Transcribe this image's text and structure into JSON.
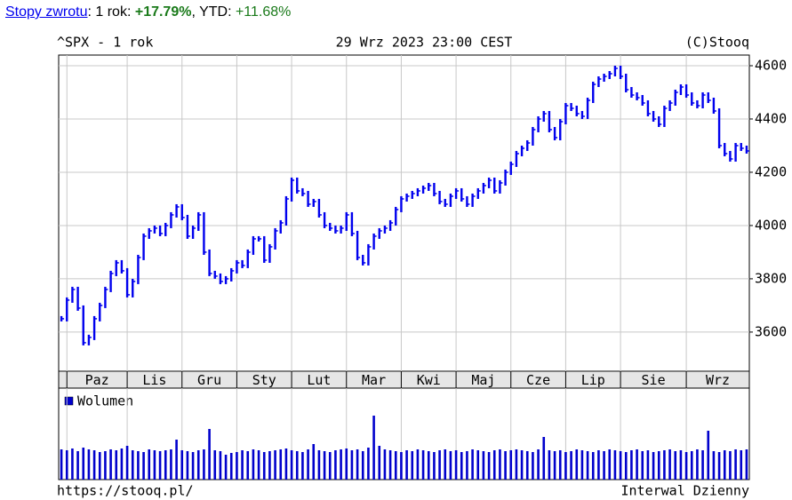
{
  "header": {
    "link": "Stopy zwrotu",
    "period": "1 rok",
    "return": "+17.79%",
    "ytd_label": "YTD",
    "ytd": "+11.68%"
  },
  "chart_data": {
    "type": "stock",
    "title": "^SPX - 1 rok",
    "subtitle": "29 Wrz 2023 23:00 CEST",
    "source": "(C)Stooq",
    "categories": [
      null,
      "Paz",
      null,
      null,
      null,
      null,
      null,
      null,
      null,
      null,
      null,
      null,
      "Lis",
      null,
      null,
      null,
      null,
      null,
      null,
      null,
      null,
      null,
      "Gru",
      null,
      null,
      null,
      null,
      null,
      null,
      null,
      null,
      null,
      "Sty",
      null,
      null,
      null,
      null,
      null,
      null,
      null,
      null,
      null,
      "Lut",
      null,
      null,
      null,
      null,
      null,
      null,
      null,
      null,
      null,
      "Mar",
      null,
      null,
      null,
      null,
      null,
      null,
      null,
      null,
      null,
      "Kwi",
      null,
      null,
      null,
      null,
      null,
      null,
      null,
      null,
      null,
      "Maj",
      null,
      null,
      null,
      null,
      null,
      null,
      null,
      null,
      null,
      "Cze",
      null,
      null,
      null,
      null,
      null,
      null,
      null,
      null,
      null,
      "Lip",
      null,
      null,
      null,
      null,
      null,
      null,
      null,
      null,
      null,
      "Sie",
      null,
      null,
      null,
      null,
      null,
      null,
      null,
      null,
      null,
      null,
      null,
      "Wrz",
      null,
      null,
      null,
      null,
      null,
      null,
      null,
      null,
      null,
      null,
      null
    ],
    "values": [
      3650,
      3720,
      3760,
      3690,
      3560,
      3580,
      3650,
      3700,
      3760,
      3820,
      3860,
      3830,
      3740,
      3790,
      3880,
      3960,
      3980,
      3990,
      3970,
      4000,
      4040,
      4070,
      4030,
      3960,
      3990,
      4040,
      3900,
      3820,
      3810,
      3790,
      3800,
      3830,
      3860,
      3850,
      3900,
      3950,
      3950,
      3870,
      3920,
      3980,
      4010,
      4100,
      4170,
      4130,
      4120,
      4080,
      4090,
      4040,
      4000,
      3990,
      3980,
      3990,
      4040,
      3970,
      3880,
      3860,
      3920,
      3960,
      3980,
      3990,
      4010,
      4060,
      4100,
      4110,
      4120,
      4130,
      4140,
      4150,
      4120,
      4090,
      4080,
      4110,
      4130,
      4100,
      4080,
      4110,
      4130,
      4150,
      4170,
      4130,
      4160,
      4200,
      4230,
      4270,
      4290,
      4310,
      4360,
      4400,
      4420,
      4360,
      4330,
      4390,
      4450,
      4440,
      4420,
      4410,
      4470,
      4530,
      4550,
      4560,
      4570,
      4590,
      4560,
      4510,
      4490,
      4480,
      4460,
      4420,
      4400,
      4380,
      4440,
      4460,
      4500,
      4520,
      4490,
      4460,
      4450,
      4490,
      4470,
      4430,
      4300,
      4270,
      4250,
      4300,
      4290,
      4280
    ],
    "color": "#0000ee",
    "ylim": [
      3453,
      4640
    ],
    "yticks": [
      3600,
      3800,
      4000,
      4200,
      4400,
      4600
    ],
    "grid": true,
    "volume": {
      "name": "Wolumen",
      "color": "#0000cc",
      "values": [
        34,
        33,
        35,
        32,
        36,
        34,
        33,
        31,
        32,
        34,
        33,
        35,
        38,
        33,
        32,
        31,
        34,
        33,
        32,
        33,
        34,
        45,
        33,
        32,
        31,
        33,
        34,
        57,
        33,
        32,
        28,
        30,
        31,
        33,
        32,
        34,
        33,
        31,
        32,
        33,
        34,
        35,
        33,
        32,
        31,
        34,
        40,
        33,
        32,
        31,
        33,
        34,
        35,
        33,
        34,
        32,
        36,
        72,
        38,
        34,
        33,
        32,
        31,
        33,
        32,
        34,
        33,
        32,
        31,
        33,
        34,
        32,
        33,
        31,
        32,
        34,
        33,
        32,
        31,
        33,
        34,
        32,
        33,
        34,
        33,
        32,
        31,
        34,
        48,
        33,
        32,
        33,
        31,
        32,
        34,
        33,
        32,
        31,
        33,
        32,
        34,
        33,
        32,
        31,
        33,
        34,
        32,
        33,
        31,
        32,
        33,
        34,
        32,
        33,
        31,
        32,
        34,
        33,
        55,
        32,
        31,
        33,
        32,
        34,
        33,
        34
      ]
    },
    "url": "https://stooq.pl/",
    "interval": "Interwal Dzienny"
  }
}
